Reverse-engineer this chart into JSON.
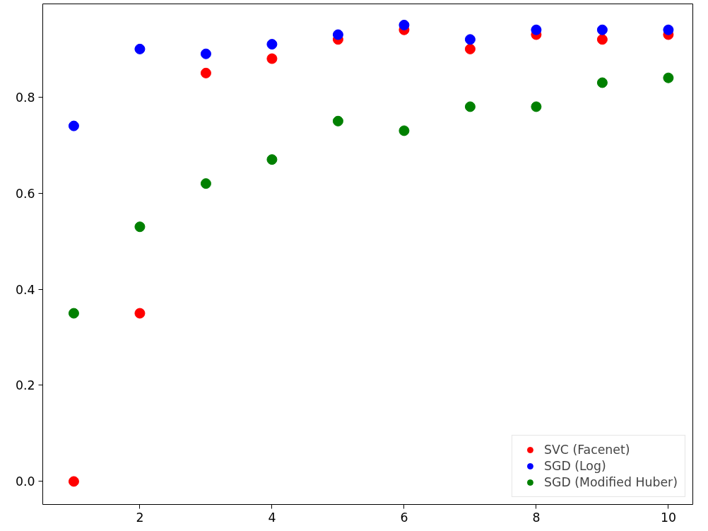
{
  "chart_data": {
    "type": "scatter",
    "x": [
      1,
      2,
      3,
      4,
      5,
      6,
      7,
      8,
      9,
      10
    ],
    "series": [
      {
        "name": "SVC (Facenet)",
        "color": "#ff0000",
        "values": [
          0.0,
          0.35,
          0.85,
          0.88,
          0.92,
          0.94,
          0.9,
          0.93,
          0.92,
          0.93
        ]
      },
      {
        "name": "SGD (Log)",
        "color": "#0000ff",
        "values": [
          0.74,
          0.9,
          0.89,
          0.91,
          0.93,
          0.95,
          0.92,
          0.94,
          0.94,
          0.94
        ]
      },
      {
        "name": "SGD (Modified Huber)",
        "color": "#008000",
        "values": [
          0.35,
          0.53,
          0.62,
          0.67,
          0.75,
          0.73,
          0.78,
          0.78,
          0.83,
          0.84
        ]
      }
    ],
    "xlim": [
      0.53,
      10.37
    ],
    "ylim": [
      -0.048,
      0.994
    ],
    "xticks": [
      2,
      4,
      6,
      8,
      10
    ],
    "yticks": [
      {
        "value": 0,
        "label": "0.0"
      },
      {
        "value": 0.2,
        "label": "0.2"
      },
      {
        "value": 0.4,
        "label": "0.4"
      },
      {
        "value": 0.6,
        "label": "0.6"
      },
      {
        "value": 0.8,
        "label": "0.8"
      }
    ],
    "grid": false,
    "legend": "bottom right",
    "marker": "circle"
  }
}
